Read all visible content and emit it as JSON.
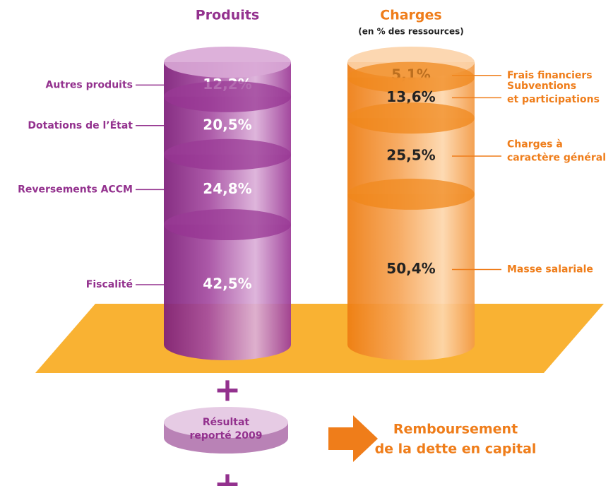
{
  "chart_data": [
    {
      "type": "cylinder",
      "title": "Produits",
      "color": "#93318e",
      "categories": [
        [
          "Autres produits"
        ],
        [
          "Dotations de l’État"
        ],
        [
          "Reversements ACCM"
        ],
        [
          "Fiscalité"
        ]
      ],
      "values": [
        12.2,
        20.5,
        24.8,
        42.5
      ],
      "value_labels": [
        "12,2%",
        "20,5%",
        "24,8%",
        "42,5%"
      ]
    },
    {
      "type": "cylinder",
      "title": "Charges",
      "subtitle": "(en % des ressources)",
      "color": "#ef7d1a",
      "categories": [
        [
          "Frais financiers"
        ],
        [
          "Subventions",
          "et participations"
        ],
        [
          "Charges à",
          "caractère général"
        ],
        [
          "Masse salariale"
        ]
      ],
      "values": [
        5.1,
        13.6,
        25.5,
        50.4
      ],
      "value_labels": [
        "5,1%",
        "13,6%",
        "25,5%",
        "50,4%"
      ]
    }
  ],
  "footer": {
    "disc": [
      "Résultat",
      "reporté 2009"
    ],
    "arrow": [
      "Remboursement",
      "de la dette en capital"
    ]
  }
}
